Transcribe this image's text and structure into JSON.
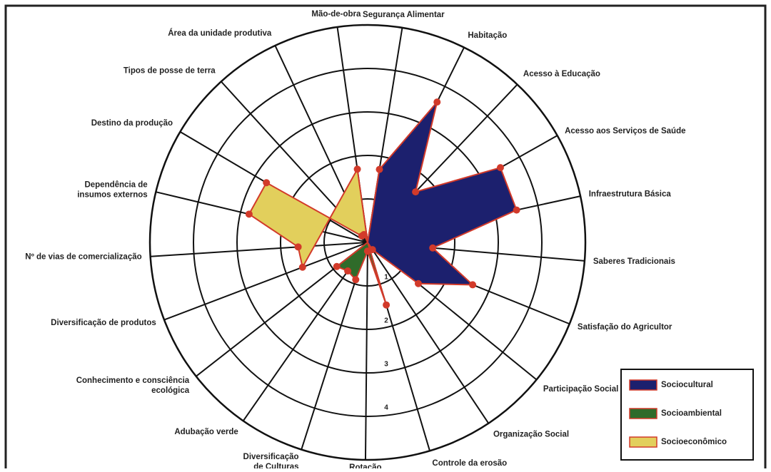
{
  "chart_data": {
    "type": "radar",
    "categories": [
      "Mão-de-obra",
      "Segurança Alimentar",
      "Habitação",
      "Acesso à Educação",
      "Acesso aos Serviços de Saúde",
      "Infraestrutura Básica",
      "Saberes Tradicionais",
      "Satisfação do Agricultor",
      "Participação Social",
      "Organização Social",
      "Controle da erosão",
      "Rotação\nde Culturas",
      "Diversificação\nde Culturas",
      "Adubação verde",
      "Conhecimento e consciência\necológica",
      "Diversificação de produtos",
      "Nº de vias de comercialização",
      "Dependência de\ninsumos externos",
      "Destino da produção",
      "Tipos de posse de terra",
      "Área da unidade produtiva"
    ],
    "series": [
      {
        "name": "Sociocultural",
        "color": "#1c206e",
        "values": [
          null,
          1.7,
          3.6,
          1.6,
          3.5,
          3.5,
          1.5,
          2.6,
          1.5,
          0.2,
          null,
          null,
          null,
          null,
          null,
          null,
          null,
          null,
          null,
          null,
          null
        ]
      },
      {
        "name": "Socioambiental",
        "color": "#2f6b2a",
        "values": [
          null,
          null,
          null,
          null,
          null,
          null,
          null,
          null,
          null,
          null,
          1.5,
          0.2,
          0.9,
          0.8,
          0.9,
          null,
          null,
          null,
          null,
          null,
          null
        ]
      },
      {
        "name": "Socioeconômico",
        "color": "#e2cf5c",
        "values": [
          1.7,
          null,
          null,
          null,
          null,
          null,
          null,
          null,
          null,
          null,
          null,
          null,
          null,
          null,
          null,
          1.6,
          1.6,
          2.8,
          2.7,
          0.2,
          0.2
        ]
      }
    ],
    "rlim": [
      0,
      5
    ],
    "rticks": [
      1,
      2,
      3,
      4
    ],
    "marker_color": "#d23a2a",
    "legend": "lower right"
  }
}
